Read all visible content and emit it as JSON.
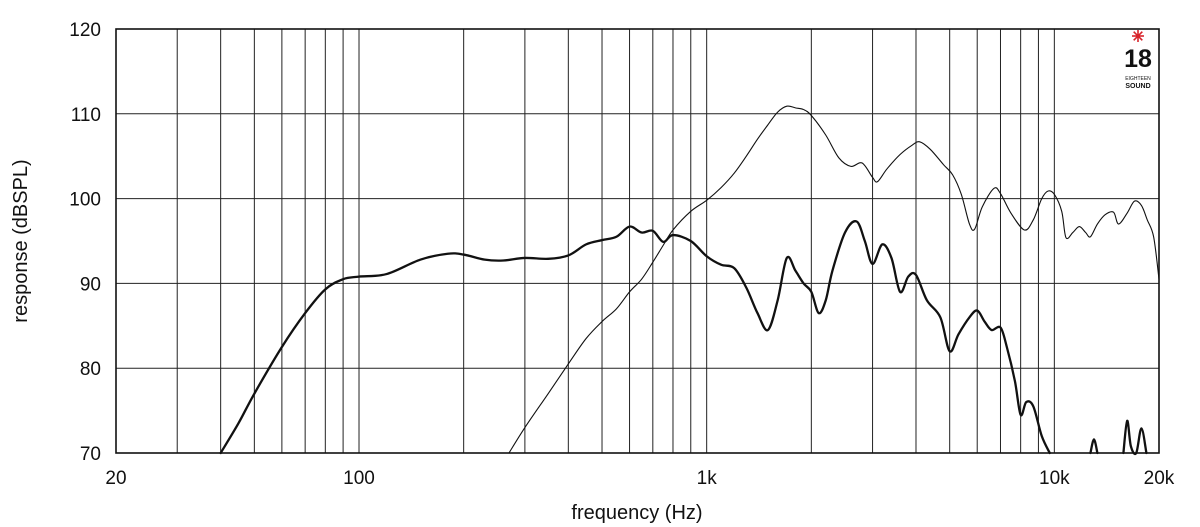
{
  "chart_data": {
    "type": "line",
    "xlabel": "frequency (Hz)",
    "ylabel": "response (dBSPL)",
    "x_scale": "log",
    "xlim": [
      20,
      20000
    ],
    "ylim": [
      70,
      120
    ],
    "grid": true,
    "x_ticks": [
      {
        "value": 20,
        "label": "20"
      },
      {
        "value": 100,
        "label": "100"
      },
      {
        "value": 1000,
        "label": "1k"
      },
      {
        "value": 10000,
        "label": "10k"
      },
      {
        "value": 20000,
        "label": "20k"
      }
    ],
    "y_ticks": [
      {
        "value": 70,
        "label": "70"
      },
      {
        "value": 80,
        "label": "80"
      },
      {
        "value": 90,
        "label": "90"
      },
      {
        "value": 100,
        "label": "100"
      },
      {
        "value": 110,
        "label": "110"
      },
      {
        "value": 120,
        "label": "120"
      }
    ],
    "series": [
      {
        "color": "#111111",
        "style": "thick",
        "points": [
          [
            40,
            70
          ],
          [
            45,
            73.5
          ],
          [
            50,
            77
          ],
          [
            60,
            82.5
          ],
          [
            70,
            86.5
          ],
          [
            80,
            89.3
          ],
          [
            90,
            90.5
          ],
          [
            100,
            90.8
          ],
          [
            120,
            91.1
          ],
          [
            150,
            92.8
          ],
          [
            180,
            93.5
          ],
          [
            200,
            93.4
          ],
          [
            230,
            92.8
          ],
          [
            260,
            92.7
          ],
          [
            300,
            93
          ],
          [
            350,
            92.9
          ],
          [
            400,
            93.3
          ],
          [
            450,
            94.6
          ],
          [
            500,
            95.1
          ],
          [
            550,
            95.5
          ],
          [
            600,
            96.7
          ],
          [
            650,
            96
          ],
          [
            700,
            96.2
          ],
          [
            750,
            94.9
          ],
          [
            800,
            95.7
          ],
          [
            900,
            95
          ],
          [
            1000,
            93.2
          ],
          [
            1100,
            92.2
          ],
          [
            1200,
            91.8
          ],
          [
            1300,
            89.5
          ],
          [
            1400,
            86.5
          ],
          [
            1500,
            84.5
          ],
          [
            1600,
            88
          ],
          [
            1700,
            93
          ],
          [
            1800,
            91.5
          ],
          [
            1900,
            90
          ],
          [
            2000,
            89
          ],
          [
            2100,
            86.5
          ],
          [
            2200,
            88
          ],
          [
            2300,
            91.5
          ],
          [
            2500,
            96
          ],
          [
            2700,
            97.3
          ],
          [
            2850,
            95
          ],
          [
            3000,
            92.3
          ],
          [
            3200,
            94.6
          ],
          [
            3400,
            93
          ],
          [
            3600,
            89
          ],
          [
            3800,
            90.8
          ],
          [
            4000,
            91
          ],
          [
            4300,
            88
          ],
          [
            4700,
            86
          ],
          [
            5000,
            82
          ],
          [
            5300,
            84
          ],
          [
            5700,
            86
          ],
          [
            6000,
            86.8
          ],
          [
            6300,
            85.5
          ],
          [
            6600,
            84.5
          ],
          [
            7000,
            84.8
          ],
          [
            7300,
            82.5
          ],
          [
            7700,
            78.5
          ],
          [
            8000,
            74.5
          ],
          [
            8300,
            76
          ],
          [
            8700,
            75.5
          ],
          [
            9200,
            72
          ],
          [
            9700,
            70
          ]
        ]
      },
      {
        "color": "#111111",
        "style": "thick",
        "points": [
          [
            12700,
            70
          ],
          [
            13000,
            71.6
          ],
          [
            13300,
            70
          ]
        ]
      },
      {
        "color": "#111111",
        "style": "thick",
        "points": [
          [
            15800,
            70
          ],
          [
            16200,
            73.8
          ],
          [
            16600,
            70.8
          ],
          [
            17200,
            70
          ],
          [
            17800,
            72.9
          ],
          [
            18400,
            70
          ]
        ]
      },
      {
        "color": "#111111",
        "style": "thin",
        "points": [
          [
            270,
            70
          ],
          [
            300,
            73
          ],
          [
            350,
            77
          ],
          [
            400,
            80.5
          ],
          [
            450,
            83.5
          ],
          [
            500,
            85.5
          ],
          [
            550,
            87
          ],
          [
            600,
            89
          ],
          [
            650,
            90.5
          ],
          [
            700,
            92.5
          ],
          [
            750,
            94.5
          ],
          [
            800,
            96.3
          ],
          [
            900,
            98.5
          ],
          [
            1000,
            99.8
          ],
          [
            1100,
            101.3
          ],
          [
            1200,
            103
          ],
          [
            1300,
            105
          ],
          [
            1400,
            107
          ],
          [
            1500,
            108.7
          ],
          [
            1600,
            110.2
          ],
          [
            1700,
            110.9
          ],
          [
            1800,
            110.7
          ],
          [
            1900,
            110.5
          ],
          [
            2000,
            109.8
          ],
          [
            2200,
            107.5
          ],
          [
            2400,
            104.8
          ],
          [
            2600,
            103.8
          ],
          [
            2800,
            104.2
          ],
          [
            3000,
            102.5
          ],
          [
            3100,
            102
          ],
          [
            3300,
            103.5
          ],
          [
            3600,
            105.2
          ],
          [
            3900,
            106.3
          ],
          [
            4100,
            106.7
          ],
          [
            4400,
            105.8
          ],
          [
            4800,
            104
          ],
          [
            5100,
            102.8
          ],
          [
            5400,
            100.5
          ],
          [
            5700,
            97
          ],
          [
            5900,
            96.4
          ],
          [
            6200,
            99
          ],
          [
            6700,
            101.2
          ],
          [
            7000,
            100.6
          ],
          [
            7500,
            98.3
          ],
          [
            8200,
            96.3
          ],
          [
            8700,
            97.5
          ],
          [
            9200,
            100
          ],
          [
            9600,
            100.9
          ],
          [
            10000,
            100.5
          ],
          [
            10500,
            98.5
          ],
          [
            10800,
            95.4
          ],
          [
            11300,
            96
          ],
          [
            11800,
            96.7
          ],
          [
            12300,
            96
          ],
          [
            12700,
            95.5
          ],
          [
            13300,
            97
          ],
          [
            14000,
            98.1
          ],
          [
            14800,
            98.4
          ],
          [
            15300,
            97
          ],
          [
            16200,
            98.3
          ],
          [
            17000,
            99.7
          ],
          [
            17800,
            99.2
          ],
          [
            18500,
            97.5
          ],
          [
            19300,
            95.5
          ],
          [
            20000,
            90.5
          ]
        ]
      }
    ]
  },
  "logo": {
    "star_color": "#d8232a",
    "number": "18",
    "line1": "EIGHTEEN",
    "line2": "SOUND"
  }
}
